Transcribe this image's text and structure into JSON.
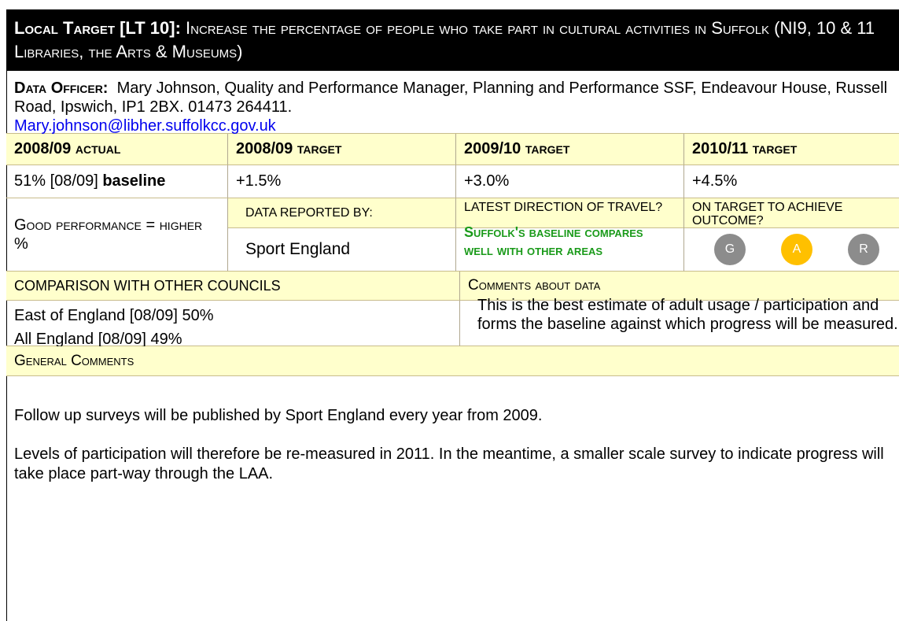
{
  "header": {
    "label": "Local Target [LT 10]",
    "title": "Increase the percentage of people who take part in cultural activities in Suffolk (NI9, 10 & 11 Libraries, the Arts & Museums)"
  },
  "officer": {
    "label": "Data Officer:",
    "text": "Mary Johnson, Quality and Performance Manager, Planning and Performance SSF, Endeavour House, Russell Road, Ipswich, IP1 2BX. 01473 264411.",
    "email": "Mary.johnson@libher.suffolkcc.gov.uk"
  },
  "targets": {
    "headers": [
      {
        "year": "2008/09",
        "label": "actual"
      },
      {
        "year": "2008/09",
        "label": "target"
      },
      {
        "year": "2009/10",
        "label": "target"
      },
      {
        "year": "2010/11",
        "label": "target"
      }
    ],
    "values": [
      "51% [08/09]",
      "+1.5%",
      "+3.0%",
      "+4.5%"
    ],
    "baseline": "baseline"
  },
  "performance": {
    "label": "Good performance = higher  %",
    "reported_by_header": "DATA REPORTED BY:",
    "reported_by": "Sport England",
    "direction_header": "LATEST DIRECTION OF TRAVEL?",
    "direction": "Suffolk's baseline compares well with other areas",
    "outcome_header": "ON TARGET TO ACHIEVE OUTCOME?",
    "rag": [
      "G",
      "A",
      "R"
    ]
  },
  "comparison": {
    "header": "COMPARISON WITH OTHER COUNCILS",
    "lines": [
      "East of England [08/09] 50%",
      "All England [08/09] 49%"
    ]
  },
  "comments_data": {
    "header": "Comments about data",
    "text": "This is the best estimate of adult usage / participation and forms the baseline against which progress will be measured."
  },
  "general": {
    "header": "General Comments",
    "paragraphs": [
      "Follow up surveys will be published by Sport England every year from 2009.",
      "Levels of participation will therefore be re-measured in 2011. In the meantime, a smaller scale survey to indicate progress will take place part-way through the LAA."
    ]
  }
}
